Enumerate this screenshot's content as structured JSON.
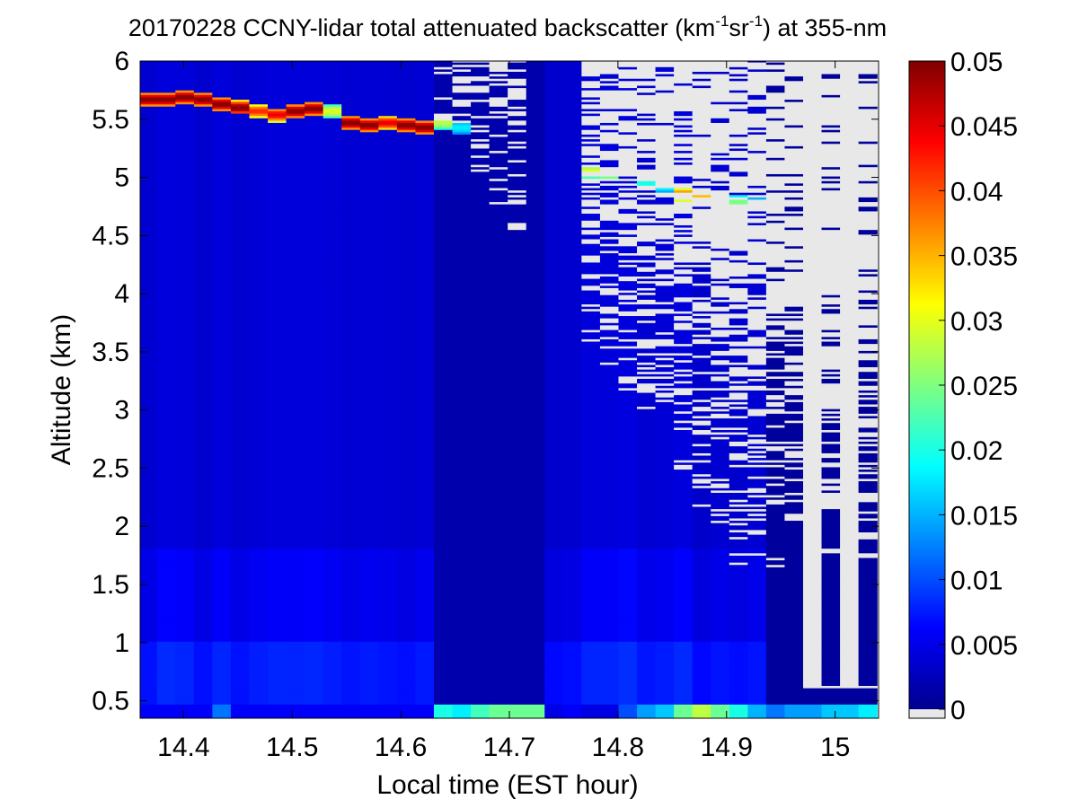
{
  "chart_data": {
    "type": "heatmap",
    "title_parts": [
      "20170228 CCNY-lidar total attenuated backscatter (km",
      "-1",
      "sr",
      "-1",
      ") at 355-nm"
    ],
    "xlabel": "Local time (EST hour)",
    "ylabel": "Altitude (km)",
    "xlim": [
      14.36,
      15.04
    ],
    "ylim": [
      0.35,
      6.0
    ],
    "xticks": [
      14.4,
      14.5,
      14.6,
      14.7,
      14.8,
      14.9,
      15
    ],
    "xtick_labels": [
      "14.4",
      "14.5",
      "14.6",
      "14.7",
      "14.8",
      "14.9",
      "15"
    ],
    "yticks": [
      0.5,
      1,
      1.5,
      2,
      2.5,
      3,
      3.5,
      4,
      4.5,
      5,
      5.5,
      6
    ],
    "ytick_labels": [
      "0.5",
      "1",
      "1.5",
      "2",
      "2.5",
      "3",
      "3.5",
      "4",
      "4.5",
      "5",
      "5.5",
      "6"
    ],
    "colormap": "jet",
    "clim": [
      0,
      0.05
    ],
    "colorbar_ticks": [
      0,
      0.005,
      0.01,
      0.015,
      0.02,
      0.025,
      0.03,
      0.035,
      0.04,
      0.045,
      0.05
    ],
    "colorbar_tick_labels": [
      "0",
      "0.005",
      "0.01",
      "0.015",
      "0.02",
      "0.025",
      "0.03",
      "0.035",
      "0.04",
      "0.045",
      "0.05"
    ],
    "no_data_color": "#e8e8e8",
    "profile_times": [
      14.367,
      14.384,
      14.401,
      14.418,
      14.435,
      14.452,
      14.469,
      14.486,
      14.503,
      14.52,
      14.537,
      14.554,
      14.571,
      14.588,
      14.605,
      14.622,
      14.639,
      14.656,
      14.673,
      14.69,
      14.707,
      14.724,
      14.741,
      14.758,
      14.775,
      14.792,
      14.809,
      14.826,
      14.843,
      14.86,
      14.877,
      14.894,
      14.911,
      14.928,
      14.945,
      14.962,
      14.979,
      14.996,
      15.013,
      15.03
    ],
    "cloud_layer_base_km": [
      5.6,
      5.6,
      5.62,
      5.6,
      5.56,
      5.53,
      5.5,
      5.47,
      5.5,
      5.52,
      5.5,
      5.4,
      5.38,
      5.4,
      5.38,
      5.36,
      5.4,
      5.36,
      null,
      null,
      null,
      null,
      null,
      null,
      4.98,
      4.97,
      null,
      4.88,
      4.86,
      4.78,
      4.76,
      4.75,
      4.72,
      4.7,
      null,
      null,
      null,
      null,
      null,
      null
    ],
    "cloud_layer_peak": [
      0.05,
      0.05,
      0.05,
      0.05,
      0.05,
      0.05,
      0.042,
      0.045,
      0.05,
      0.05,
      0.03,
      0.05,
      0.05,
      0.045,
      0.05,
      0.05,
      0.028,
      0.018,
      null,
      null,
      null,
      null,
      null,
      null,
      0.03,
      0.03,
      null,
      0.02,
      0.02,
      0.04,
      0.035,
      0.028,
      0.025,
      0.02,
      null,
      null,
      null,
      null,
      null,
      null
    ],
    "surface_layer_value": [
      0.006,
      0.006,
      0.006,
      0.006,
      0.012,
      0.006,
      0.006,
      0.006,
      0.006,
      0.006,
      0.006,
      0.006,
      0.006,
      0.006,
      0.006,
      0.006,
      0.02,
      0.018,
      0.022,
      0.024,
      0.024,
      0.024,
      0.005,
      0.006,
      0.005,
      0.005,
      0.01,
      0.014,
      0.016,
      0.024,
      0.028,
      0.024,
      0.02,
      0.015,
      0.012,
      0.014,
      0.014,
      0.016,
      0.016,
      0.018
    ]
  }
}
